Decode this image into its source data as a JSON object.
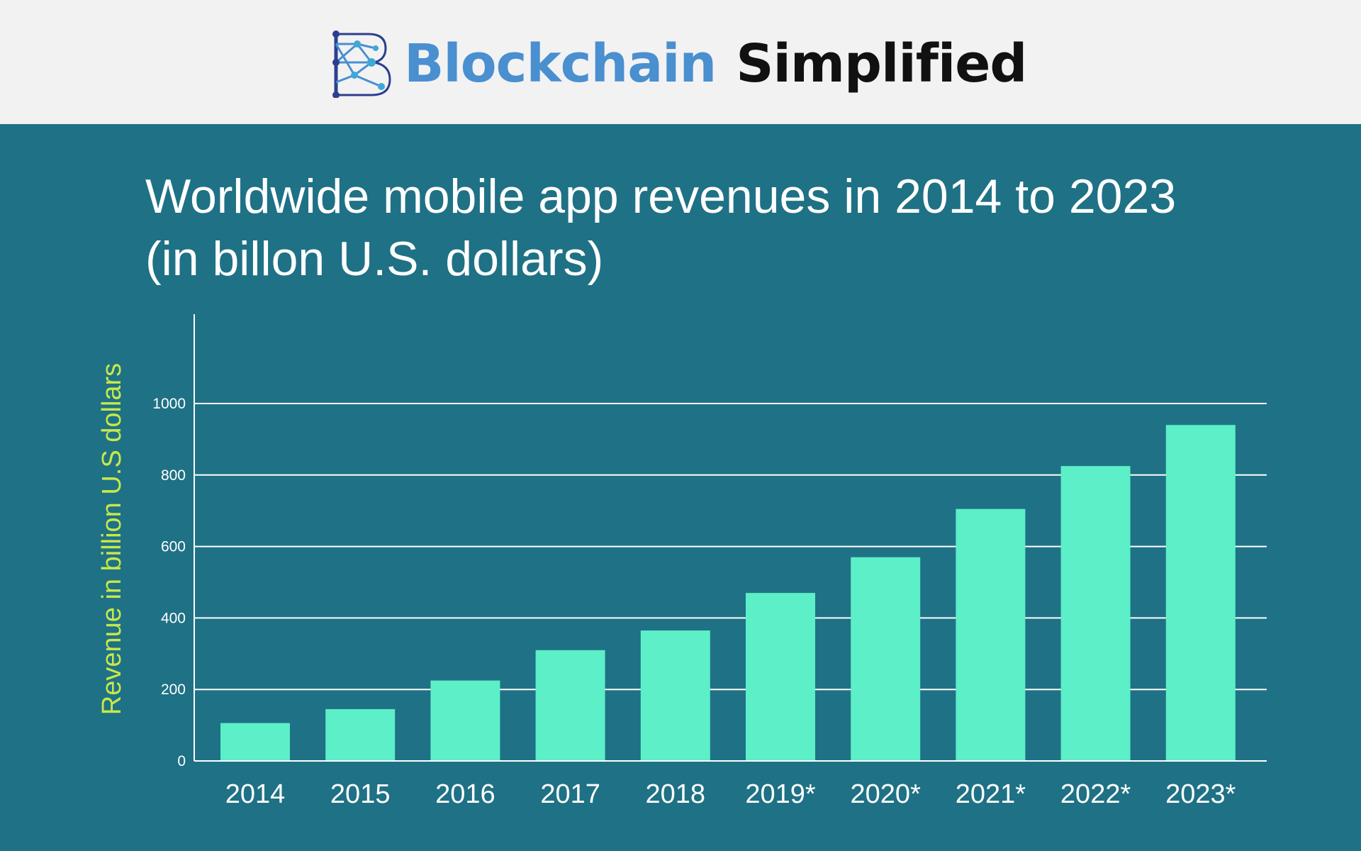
{
  "header": {
    "brand_primary": "Blockchain",
    "brand_secondary": "Simplified",
    "logo_icon": "network-b-logo-icon"
  },
  "colors": {
    "header_background": "#f2f2f3",
    "panel_background": "#1f7185",
    "brand_primary": "#4a8fcf",
    "brand_secondary": "#111111",
    "bar": "#5cefc8",
    "ylabel": "#c6e84a",
    "text": "#ffffff",
    "grid": "#ffffff"
  },
  "chart_data": {
    "type": "bar",
    "title_line1": "Worldwide mobile app revenues in 2014 to 2023",
    "title_line2": "(in billon U.S. dollars)",
    "xlabel": "",
    "ylabel": "Revenue in billion U.S dollars",
    "categories": [
      "2014",
      "2015",
      "2016",
      "2017",
      "2018",
      "2019*",
      "2020*",
      "2021*",
      "2022*",
      "2023*"
    ],
    "values": [
      106,
      145,
      225,
      310,
      365,
      470,
      570,
      705,
      825,
      940
    ],
    "yticks": [
      0,
      200,
      400,
      600,
      800,
      1000
    ],
    "ylim": [
      0,
      1250
    ],
    "grid": true,
    "legend": "none"
  }
}
